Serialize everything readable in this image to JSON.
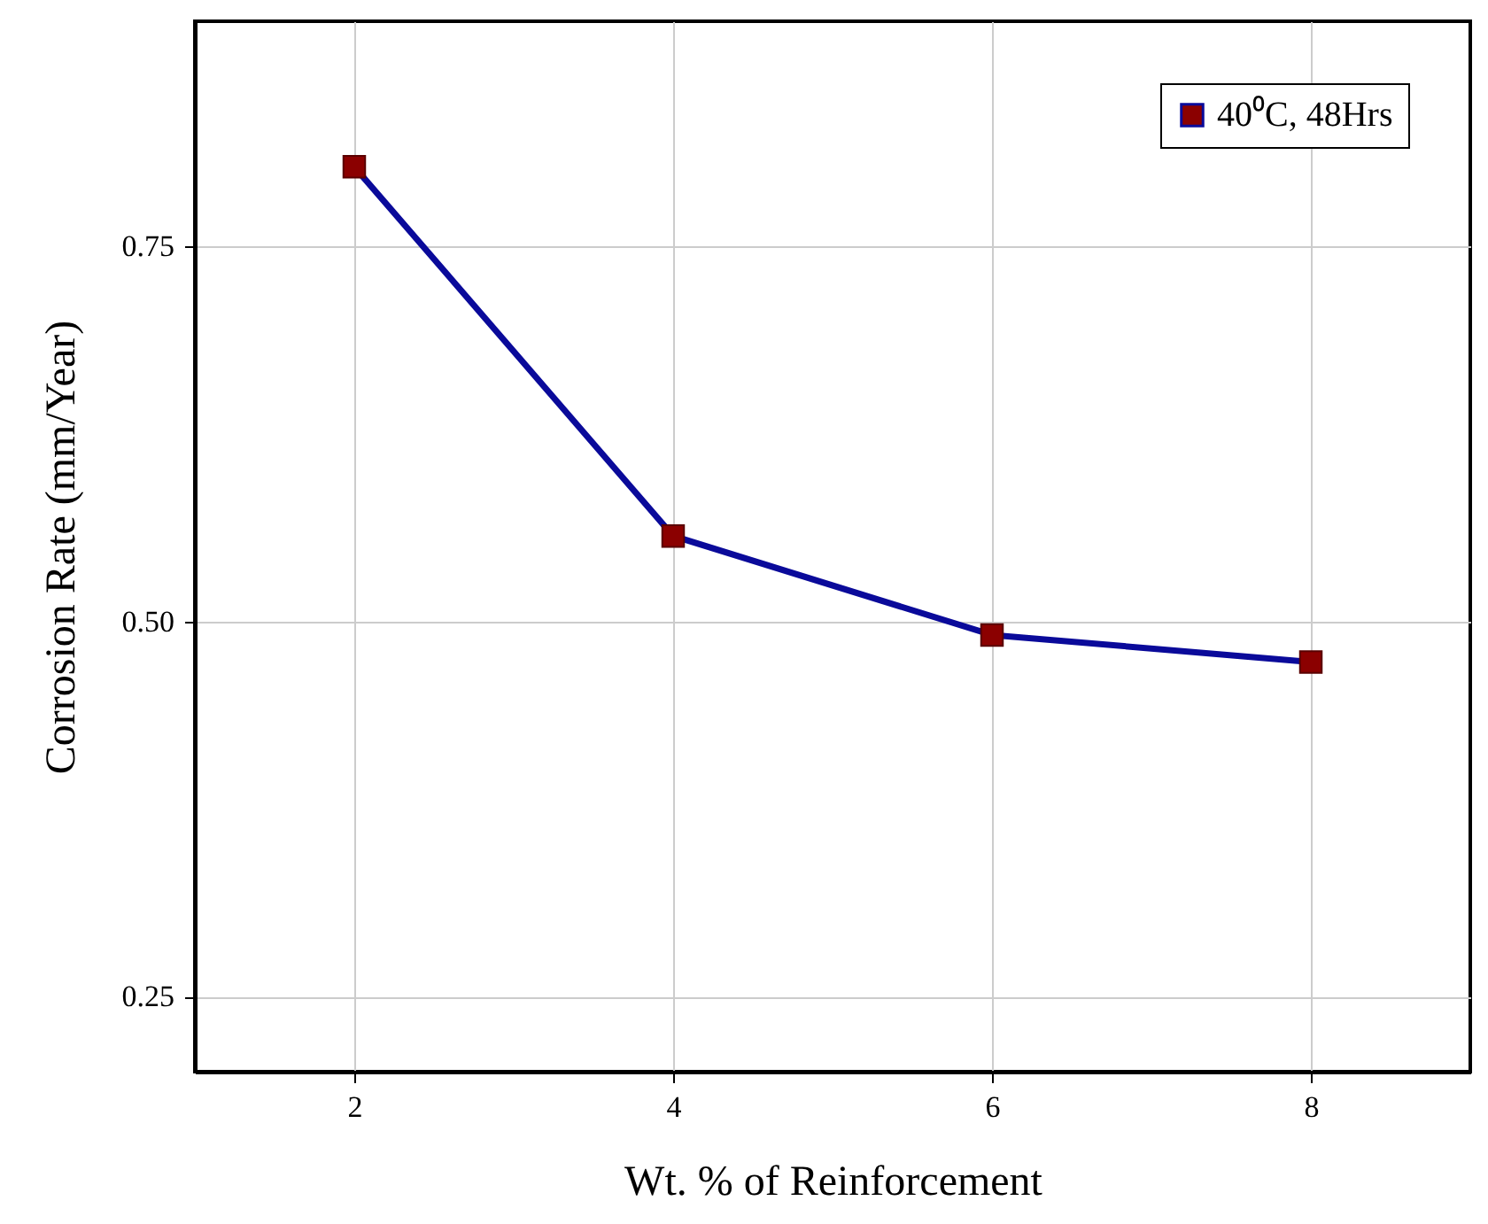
{
  "chart_data": {
    "type": "line",
    "xlabel": "Wt. % of Reinforcement",
    "ylabel": "Corrosion Rate (mm/Year)",
    "x": [
      2,
      4,
      6,
      8
    ],
    "series": [
      {
        "name": "40⁰C, 48Hrs",
        "color": "#0a0a9a",
        "values": [
          0.803,
          0.557,
          0.491,
          0.473
        ]
      }
    ],
    "xlim": [
      1,
      9
    ],
    "xticks": [
      2,
      4,
      6,
      8
    ],
    "ylim": [
      0.2,
      0.9
    ],
    "yticks": [
      {
        "value": 0.25,
        "label": "0.25"
      },
      {
        "value": 0.5,
        "label": "0.50"
      },
      {
        "value": 0.75,
        "label": "0.75"
      }
    ],
    "grid": true,
    "legend": "top right",
    "marker": "square",
    "line_style": "solid"
  }
}
